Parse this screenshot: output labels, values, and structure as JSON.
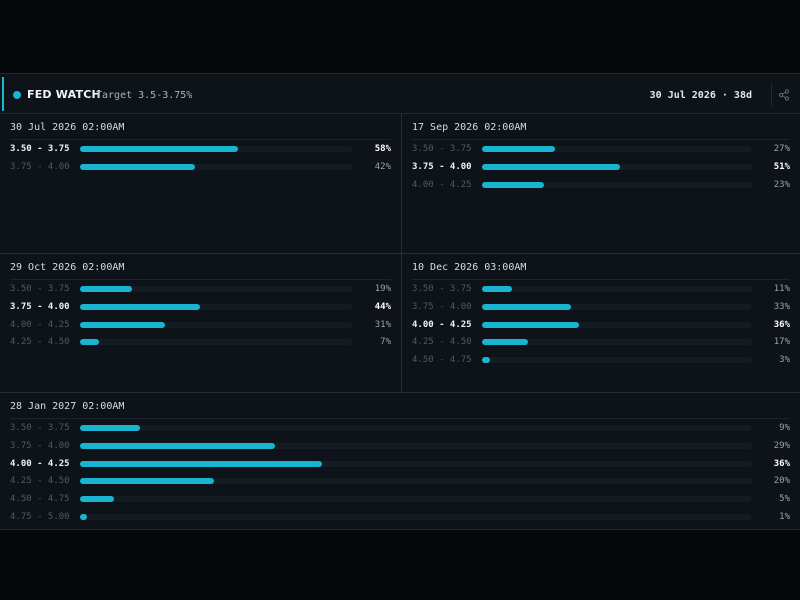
{
  "header": {
    "title": "FED WATCH",
    "target": "Target 3.5-3.75%",
    "next_meeting": "30 Jul 2026 · 38d",
    "share_icon": "share-icon"
  },
  "colors": {
    "accent": "#19b4d0",
    "background": "#0d1319",
    "track": "#141c23"
  },
  "meetings": [
    {
      "date": "30 Jul 2026 02:00AM",
      "rows": [
        {
          "range": "3.50 - 3.75",
          "pct": "58%",
          "value": 58
        },
        {
          "range": "3.75 - 4.00",
          "pct": "42%",
          "value": 42
        }
      ],
      "top": 0
    },
    {
      "date": "17 Sep 2026 02:00AM",
      "rows": [
        {
          "range": "3.50 - 3.75",
          "pct": "27%",
          "value": 27
        },
        {
          "range": "3.75 - 4.00",
          "pct": "51%",
          "value": 51
        },
        {
          "range": "4.00 - 4.25",
          "pct": "23%",
          "value": 23
        }
      ],
      "top": 1
    },
    {
      "date": "29 Oct 2026 02:00AM",
      "rows": [
        {
          "range": "3.50 - 3.75",
          "pct": "19%",
          "value": 19
        },
        {
          "range": "3.75 - 4.00",
          "pct": "44%",
          "value": 44
        },
        {
          "range": "4.00 - 4.25",
          "pct": "31%",
          "value": 31
        },
        {
          "range": "4.25 - 4.50",
          "pct": "7%",
          "value": 7
        }
      ],
      "top": 1
    },
    {
      "date": "10 Dec 2026 03:00AM",
      "rows": [
        {
          "range": "3.50 - 3.75",
          "pct": "11%",
          "value": 11
        },
        {
          "range": "3.75 - 4.00",
          "pct": "33%",
          "value": 33
        },
        {
          "range": "4.00 - 4.25",
          "pct": "36%",
          "value": 36
        },
        {
          "range": "4.25 - 4.50",
          "pct": "17%",
          "value": 17
        },
        {
          "range": "4.50 - 4.75",
          "pct": "3%",
          "value": 3
        }
      ],
      "top": 2
    },
    {
      "date": "28 Jan 2027 02:00AM",
      "rows": [
        {
          "range": "3.50 - 3.75",
          "pct": "9%",
          "value": 9
        },
        {
          "range": "3.75 - 4.00",
          "pct": "29%",
          "value": 29
        },
        {
          "range": "4.00 - 4.25",
          "pct": "36%",
          "value": 36
        },
        {
          "range": "4.25 - 4.50",
          "pct": "20%",
          "value": 20
        },
        {
          "range": "4.50 - 4.75",
          "pct": "5%",
          "value": 5
        },
        {
          "range": "4.75 - 5.00",
          "pct": "1%",
          "value": 1
        }
      ],
      "top": 2
    }
  ]
}
